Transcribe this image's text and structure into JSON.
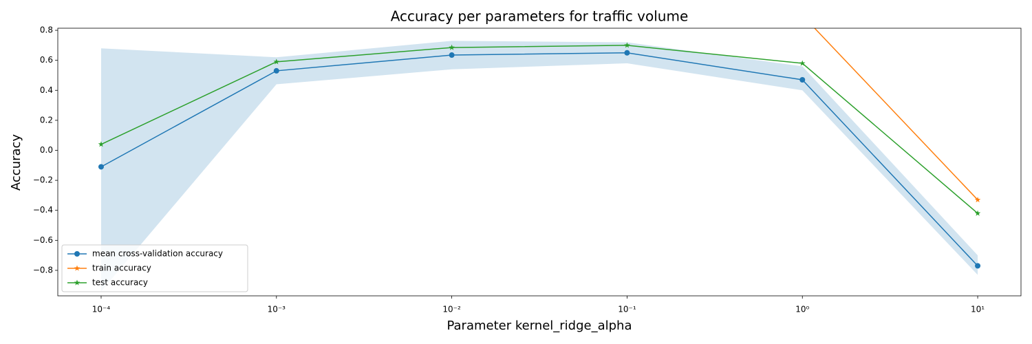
{
  "chart_data": {
    "type": "line",
    "title": "Accuracy per parameters for traffic volume",
    "x_label": "Parameter kernel_ridge_alpha",
    "y_label": "Accuracy",
    "x": [
      0.0001,
      0.001,
      0.01,
      0.1,
      1,
      10
    ],
    "x_log": true,
    "xlim": [
      5.66e-05,
      17.66
    ],
    "ylim": [
      -0.97,
      0.814
    ],
    "xticks": [
      {
        "value": 0.0001,
        "label": "10⁻⁴"
      },
      {
        "value": 0.001,
        "label": "10⁻³"
      },
      {
        "value": 0.01,
        "label": "10⁻²"
      },
      {
        "value": 0.1,
        "label": "10⁻¹"
      },
      {
        "value": 1,
        "label": "10⁰"
      },
      {
        "value": 10,
        "label": "10¹"
      }
    ],
    "yticks": [
      {
        "value": -0.8,
        "label": "−0.8"
      },
      {
        "value": -0.6,
        "label": "−0.6"
      },
      {
        "value": -0.4,
        "label": "−0.4"
      },
      {
        "value": -0.2,
        "label": "−0.2"
      },
      {
        "value": 0,
        "label": "0.0"
      },
      0.2,
      0.4,
      0.6,
      0.8
    ],
    "band": {
      "color": "#1f77b4",
      "opacity": 0.2,
      "upper": [
        0.68,
        0.62,
        0.73,
        0.72,
        0.56,
        -0.7
      ],
      "lower": [
        -0.94,
        0.44,
        0.54,
        0.58,
        0.4,
        -0.83
      ]
    },
    "series": [
      {
        "name": "mean cross-validation accuracy",
        "color": "#1f77b4",
        "marker": "circle",
        "values": [
          -0.11,
          0.53,
          0.635,
          0.65,
          0.47,
          -0.77
        ]
      },
      {
        "name": "train accuracy",
        "color": "#ff7f0e",
        "marker": "star",
        "values": [
          null,
          null,
          null,
          null,
          0.9,
          -0.33
        ]
      },
      {
        "name": "test accuracy",
        "color": "#2ca02c",
        "marker": "star",
        "values": [
          0.04,
          0.59,
          0.685,
          0.7,
          0.58,
          -0.42
        ]
      }
    ],
    "legend": "lower left"
  }
}
